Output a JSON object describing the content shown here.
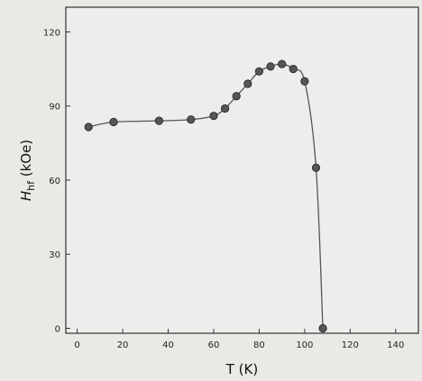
{
  "chart_data": {
    "type": "line",
    "title": "",
    "xlabel": "T (K)",
    "ylabel_main": "H",
    "ylabel_sub": "hf",
    "ylabel_unit": " (kOe)",
    "xlim": [
      -5,
      150
    ],
    "ylim": [
      -2,
      130
    ],
    "x_ticks": [
      0,
      20,
      40,
      60,
      80,
      100,
      120,
      140
    ],
    "x_tick_labels": [
      "0",
      "20",
      "40",
      "60",
      "80",
      "100",
      "120",
      "140"
    ],
    "y_ticks": [
      0,
      30,
      60,
      90,
      120
    ],
    "y_tick_labels": [
      "0",
      "30",
      "60",
      "90",
      "120"
    ],
    "series": [
      {
        "marker": "circle",
        "color": "#555555",
        "x": [
          5,
          16,
          36,
          50,
          60,
          65,
          70,
          75,
          80,
          85,
          90,
          95,
          100,
          105,
          108
        ],
        "y": [
          81.5,
          83.5,
          84,
          84.5,
          86,
          89,
          94,
          99,
          104,
          106,
          107,
          105,
          100,
          65,
          0
        ]
      }
    ]
  }
}
